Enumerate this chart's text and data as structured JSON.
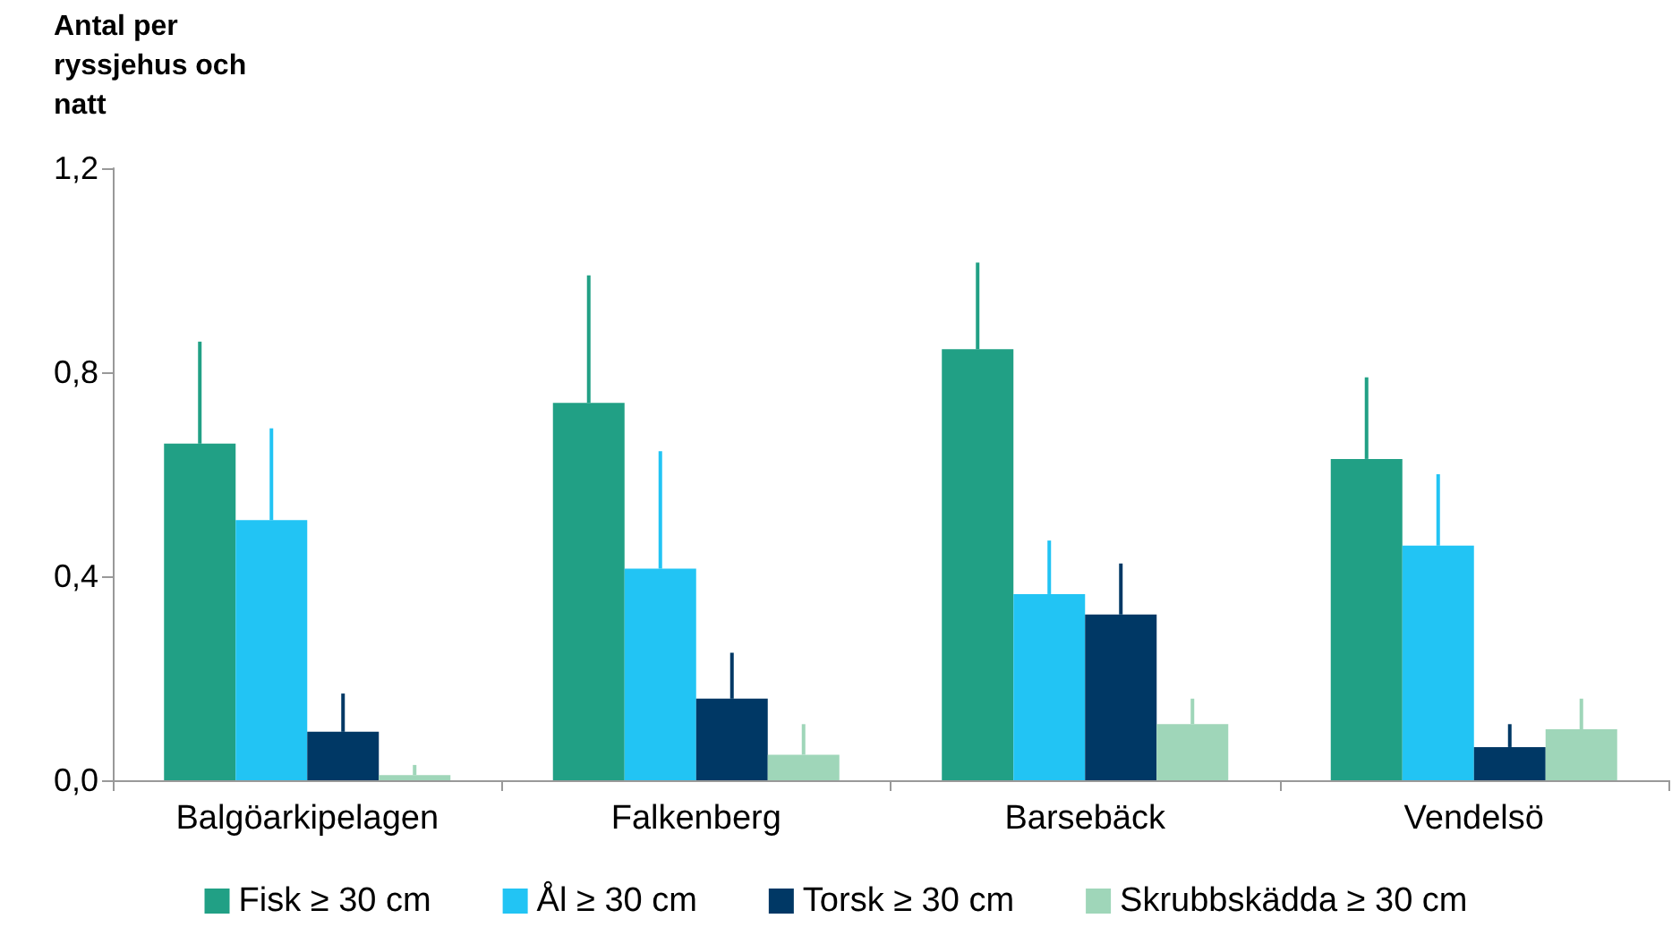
{
  "chart_data": {
    "type": "bar",
    "ylabel": "Antal per ryssjehus och natt",
    "categories": [
      "Balgöarkipelagen",
      "Falkenberg",
      "Barsebäck",
      "Vendelsö"
    ],
    "series": [
      {
        "name": "Fisk ≥ 30 cm",
        "color": "#21a085",
        "values": [
          0.66,
          0.74,
          0.845,
          0.63
        ],
        "errors": [
          [
            0.66,
            0.86
          ],
          [
            0.74,
            0.99
          ],
          [
            0.845,
            1.015
          ],
          [
            0.63,
            0.79
          ]
        ]
      },
      {
        "name": "Ål ≥ 30 cm",
        "color": "#22c4f4",
        "values": [
          0.51,
          0.415,
          0.365,
          0.46
        ],
        "errors": [
          [
            0.51,
            0.69
          ],
          [
            0.415,
            0.645
          ],
          [
            0.365,
            0.47
          ],
          [
            0.46,
            0.6
          ]
        ]
      },
      {
        "name": "Torsk ≥ 30 cm",
        "color": "#003865",
        "values": [
          0.095,
          0.16,
          0.325,
          0.065
        ],
        "errors": [
          [
            0.095,
            0.17
          ],
          [
            0.16,
            0.25
          ],
          [
            0.325,
            0.425
          ],
          [
            0.065,
            0.11
          ]
        ]
      },
      {
        "name": "Skrubbskädda ≥ 30 cm",
        "color": "#9fd6b9",
        "values": [
          0.01,
          0.05,
          0.11,
          0.1
        ],
        "errors": [
          [
            0.01,
            0.03
          ],
          [
            0.05,
            0.11
          ],
          [
            0.11,
            0.16
          ],
          [
            0.1,
            0.16
          ]
        ]
      }
    ],
    "ylim": [
      0,
      1.2
    ],
    "yticks": [
      {
        "value": 0,
        "label": "0,0"
      },
      {
        "value": 0.4,
        "label": "0,4"
      },
      {
        "value": 0.8,
        "label": "0,8"
      },
      {
        "value": 1.2,
        "label": "1,2"
      }
    ],
    "grid": false,
    "legend": "bottom"
  }
}
